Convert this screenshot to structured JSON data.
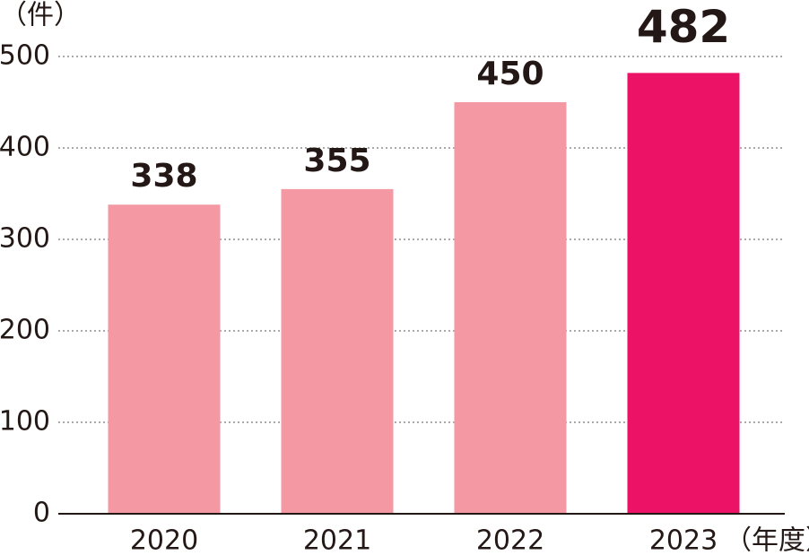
{
  "chart_data": {
    "type": "bar",
    "y_unit": "（件）",
    "x_unit": "（年度）",
    "categories": [
      "2020",
      "2021",
      "2022",
      "2023"
    ],
    "values": [
      338,
      355,
      450,
      482
    ],
    "colors": [
      "#f499a4",
      "#f499a4",
      "#f499a4",
      "#ec1367"
    ],
    "ylim": [
      0,
      500
    ],
    "yticks": [
      0,
      100,
      200,
      300,
      400,
      500
    ],
    "grid": true
  }
}
